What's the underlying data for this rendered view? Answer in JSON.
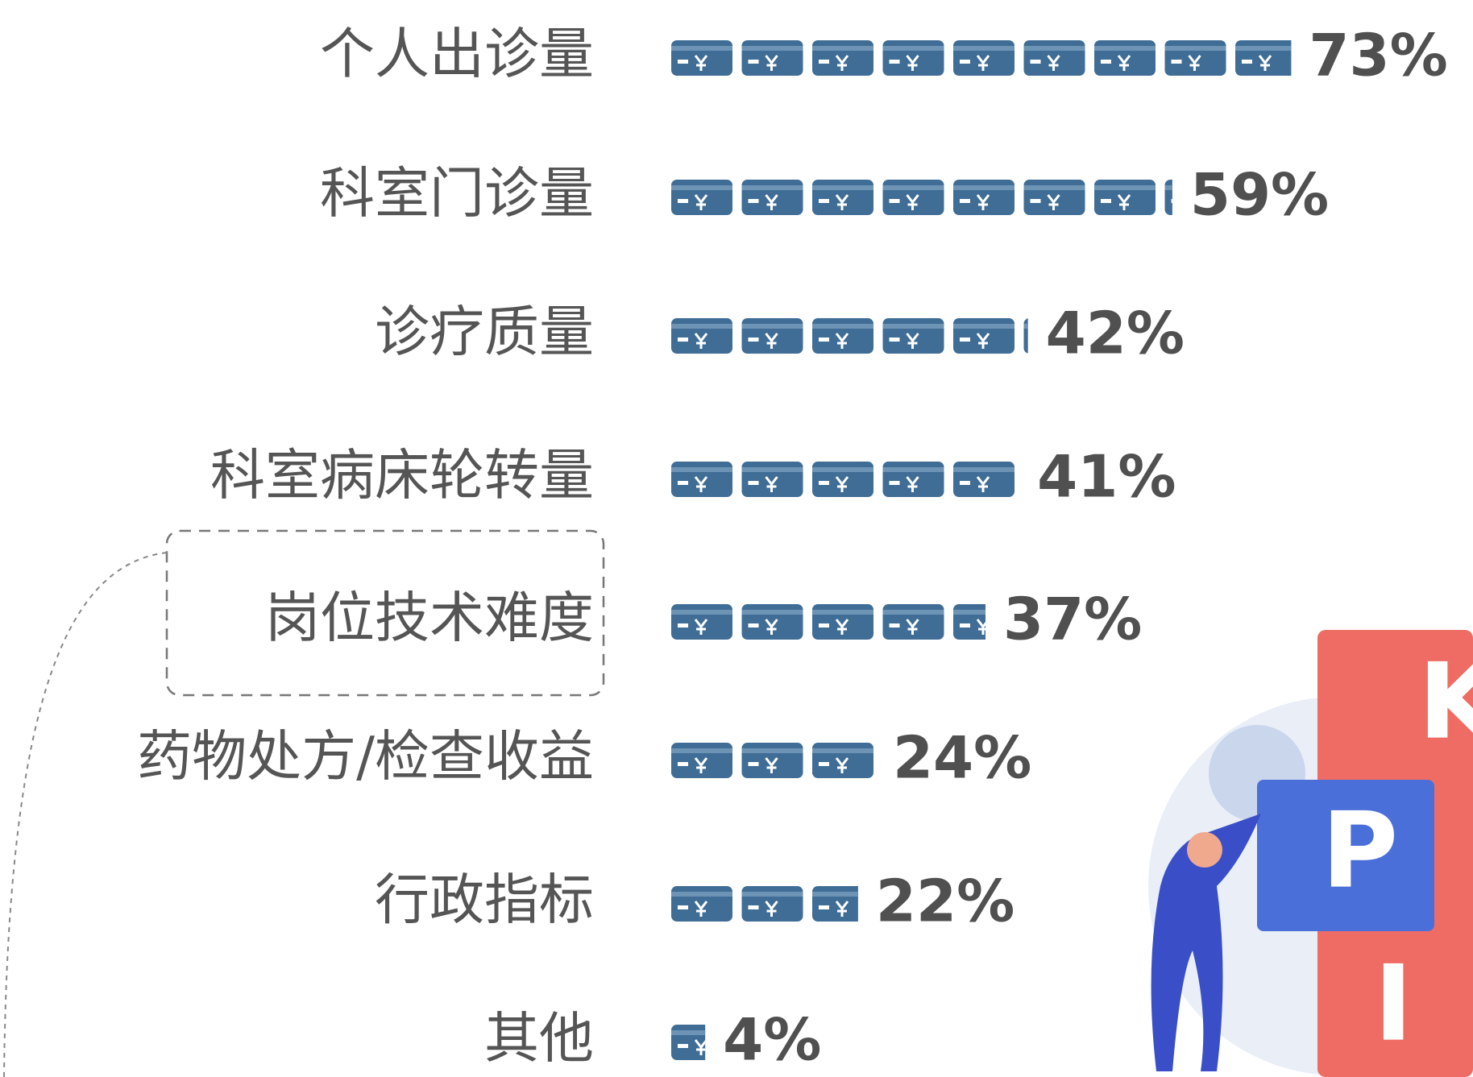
{
  "chart_data": {
    "type": "bar",
    "categories": [
      "个人出诊量",
      "科室门诊量",
      "诊疗质量",
      "科室病床轮转量",
      "岗位技术难度",
      "药物处方/检查收益",
      "行政指标",
      "其他"
    ],
    "values": [
      73,
      59,
      42,
      41,
      37,
      24,
      22,
      4
    ],
    "value_labels": [
      "73%",
      "59%",
      "42%",
      "41%",
      "37%",
      "24%",
      "22%",
      "4%"
    ],
    "color": "#3f6d95"
  },
  "illustration": {
    "letters": [
      "K",
      "P",
      "I"
    ]
  }
}
